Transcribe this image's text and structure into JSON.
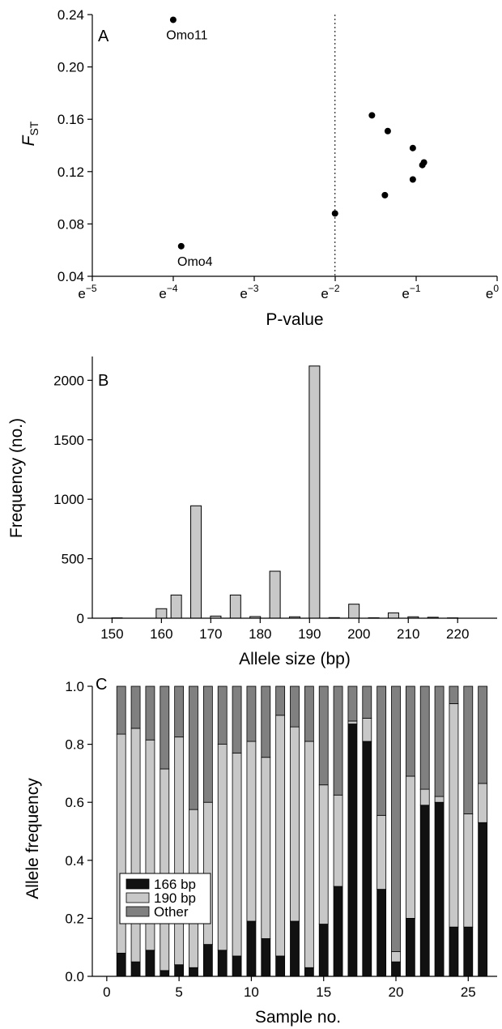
{
  "chart_data": [
    {
      "panel": "A",
      "type": "scatter",
      "xlabel": "P-value",
      "ylabel_main": "F",
      "ylabel_sub": "ST",
      "x_scale": "log-e",
      "xlim_exponent": [
        -5,
        0
      ],
      "x_ticks": [
        {
          "base": "e",
          "exp": "−5"
        },
        {
          "base": "e",
          "exp": "−4"
        },
        {
          "base": "e",
          "exp": "−3"
        },
        {
          "base": "e",
          "exp": "−2"
        },
        {
          "base": "e",
          "exp": "−1"
        },
        {
          "base": "e",
          "exp": "0"
        }
      ],
      "ylim": [
        0.04,
        0.24
      ],
      "y_ticks": [
        "0.04",
        "0.08",
        "0.12",
        "0.16",
        "0.20",
        "0.24"
      ],
      "points": [
        {
          "x": 0.0183,
          "y": 0.236,
          "label": "Omo11"
        },
        {
          "x": 0.0202,
          "y": 0.063,
          "label": "Omo4"
        },
        {
          "x": 0.135,
          "y": 0.088
        },
        {
          "x": 0.213,
          "y": 0.163
        },
        {
          "x": 0.259,
          "y": 0.151
        },
        {
          "x": 0.25,
          "y": 0.102
        },
        {
          "x": 0.353,
          "y": 0.138
        },
        {
          "x": 0.353,
          "y": 0.114
        },
        {
          "x": 0.397,
          "y": 0.125
        },
        {
          "x": 0.405,
          "y": 0.127
        }
      ],
      "threshold_line_x": 0.135,
      "grid": false
    },
    {
      "panel": "B",
      "type": "bar",
      "xlabel": "Allele size (bp)",
      "ylabel": "Frequency (no.)",
      "xlim": [
        146,
        228
      ],
      "ylim": [
        0,
        2200
      ],
      "x_ticks": [
        150,
        160,
        170,
        180,
        190,
        200,
        210,
        220
      ],
      "y_ticks": [
        0,
        500,
        1000,
        1500,
        2000
      ],
      "categories": [
        151,
        154,
        160,
        163,
        167,
        171,
        175,
        179,
        183,
        187,
        191,
        195,
        199,
        203,
        207,
        211,
        215,
        219
      ],
      "values": [
        3,
        0,
        80,
        195,
        945,
        18,
        195,
        14,
        395,
        12,
        2120,
        5,
        118,
        4,
        45,
        12,
        8,
        3
      ],
      "bar_color": "#c8c8c8",
      "grid": false
    },
    {
      "panel": "C",
      "type": "bar",
      "stacked": true,
      "xlabel": "Sample no.",
      "ylabel": "Allele frequency",
      "xlim": [
        -1,
        27
      ],
      "ylim": [
        0,
        1.0
      ],
      "x_ticks": [
        0,
        5,
        10,
        15,
        20,
        25
      ],
      "y_ticks": [
        "0.0",
        "0.2",
        "0.4",
        "0.6",
        "0.8",
        "1.0"
      ],
      "categories": [
        1,
        2,
        3,
        4,
        5,
        6,
        7,
        8,
        9,
        10,
        11,
        12,
        13,
        14,
        15,
        16,
        17,
        18,
        19,
        20,
        21,
        22,
        23,
        24,
        25,
        26
      ],
      "series": [
        {
          "name": "166 bp",
          "color": "#111111",
          "values": [
            0.08,
            0.05,
            0.09,
            0.02,
            0.04,
            0.03,
            0.11,
            0.09,
            0.07,
            0.19,
            0.13,
            0.07,
            0.19,
            0.03,
            0.18,
            0.31,
            0.87,
            0.81,
            0.3,
            0.05,
            0.2,
            0.59,
            0.6,
            0.17,
            0.17,
            0.53
          ]
        },
        {
          "name": "190 bp",
          "color": "#c8c8c8",
          "values": [
            0.755,
            0.805,
            0.725,
            0.695,
            0.785,
            0.545,
            0.49,
            0.71,
            0.7,
            0.62,
            0.625,
            0.83,
            0.67,
            0.78,
            0.48,
            0.315,
            0.01,
            0.08,
            0.255,
            0.035,
            0.49,
            0.055,
            0.02,
            0.77,
            0.39,
            0.135
          ]
        },
        {
          "name": "Other",
          "color": "#808080",
          "values": [
            0.165,
            0.145,
            0.185,
            0.285,
            0.175,
            0.425,
            0.4,
            0.2,
            0.23,
            0.19,
            0.245,
            0.1,
            0.14,
            0.19,
            0.34,
            0.375,
            0.12,
            0.11,
            0.445,
            0.915,
            0.31,
            0.355,
            0.38,
            0.06,
            0.44,
            0.335
          ]
        }
      ],
      "legend_position": "left-middle",
      "grid": false
    }
  ]
}
